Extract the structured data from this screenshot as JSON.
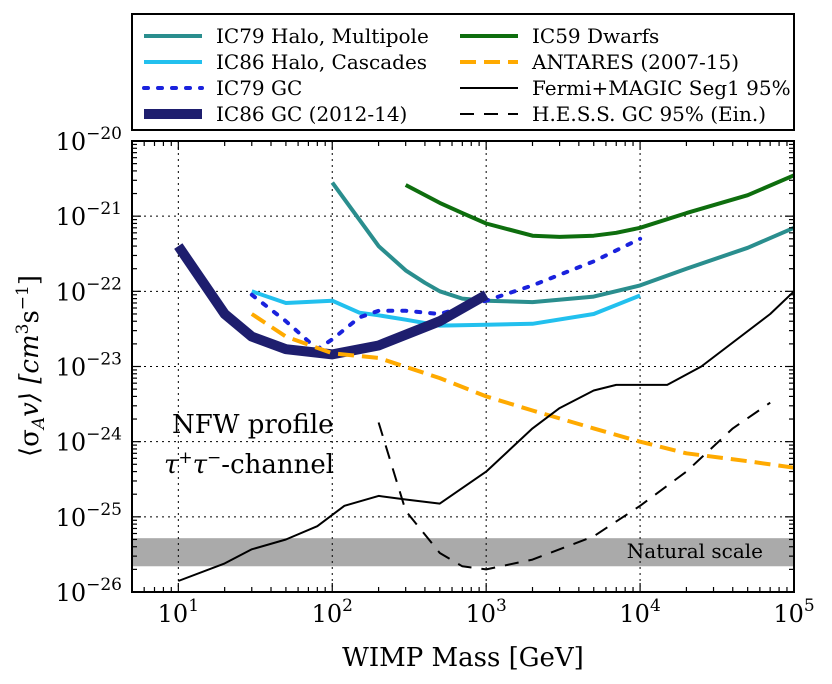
{
  "chart_data": {
    "type": "line",
    "title": "",
    "xlabel": "WIMP Mass [GeV]",
    "ylabel": "⟨σ_A v⟩ [cm³s⁻¹]",
    "xscale": "log",
    "yscale": "log",
    "xlim": [
      5,
      100000
    ],
    "ylim": [
      1e-26,
      1e-20
    ],
    "grid": true,
    "legend_position": "top",
    "x_tick_labels": [
      {
        "value": 10,
        "base": "10",
        "exp": "1"
      },
      {
        "value": 100,
        "base": "10",
        "exp": "2"
      },
      {
        "value": 1000,
        "base": "10",
        "exp": "3"
      },
      {
        "value": 10000,
        "base": "10",
        "exp": "4"
      },
      {
        "value": 100000,
        "base": "10",
        "exp": "5"
      }
    ],
    "y_tick_labels": [
      {
        "value": 1e-26,
        "base": "10",
        "exp": "−26"
      },
      {
        "value": 1e-25,
        "base": "10",
        "exp": "−25"
      },
      {
        "value": 1e-24,
        "base": "10",
        "exp": "−24"
      },
      {
        "value": 1e-23,
        "base": "10",
        "exp": "−23"
      },
      {
        "value": 1e-22,
        "base": "10",
        "exp": "−22"
      },
      {
        "value": 1e-21,
        "base": "10",
        "exp": "−21"
      },
      {
        "value": 1e-20,
        "base": "10",
        "exp": "−20"
      }
    ],
    "series": [
      {
        "name": "IC79 Halo, Multipole",
        "color": "#2a8e8e",
        "style": "solid",
        "weight": "medium",
        "x": [
          100,
          200,
          300,
          400,
          500,
          700,
          1000,
          2000,
          5000,
          10000,
          20000,
          50000,
          100000
        ],
        "y": [
          2.8e-21,
          4e-22,
          1.9e-22,
          1.3e-22,
          1e-22,
          8e-23,
          7.5e-23,
          7.2e-23,
          8.5e-23,
          1.2e-22,
          2e-22,
          3.8e-22,
          7e-22
        ]
      },
      {
        "name": "IC86 Halo, Cascades",
        "color": "#22c0ee",
        "style": "solid",
        "weight": "medium",
        "x": [
          30,
          50,
          100,
          150,
          200,
          300,
          500,
          1000,
          2000,
          5000,
          10000
        ],
        "y": [
          1e-22,
          7e-23,
          7.5e-23,
          5.2e-23,
          4.8e-23,
          4.2e-23,
          3.5e-23,
          3.6e-23,
          3.7e-23,
          5e-23,
          8.8e-23
        ]
      },
      {
        "name": "IC79 GC",
        "color": "#1a22dd",
        "style": "dotted",
        "weight": "medium",
        "x": [
          30,
          50,
          80,
          100,
          150,
          200,
          300,
          500,
          1000,
          2000,
          5000,
          10000
        ],
        "y": [
          9e-23,
          4e-23,
          1.7e-23,
          2.3e-23,
          4.5e-23,
          5.5e-23,
          5.5e-23,
          5e-23,
          7.5e-23,
          1.2e-22,
          2.5e-22,
          5e-22
        ]
      },
      {
        "name": "IC86 GC (2012-14)",
        "color": "#1e1e6e",
        "style": "solid",
        "weight": "heavy",
        "x": [
          10,
          20,
          30,
          50,
          100,
          200,
          500,
          1000
        ],
        "y": [
          4e-22,
          5e-23,
          2.5e-23,
          1.7e-23,
          1.45e-23,
          1.9e-23,
          4e-23,
          9e-23
        ]
      },
      {
        "name": "IC59 Dwarfs",
        "color": "#0e6e0e",
        "style": "solid",
        "weight": "medium",
        "x": [
          300,
          500,
          700,
          1000,
          2000,
          3000,
          5000,
          7000,
          10000,
          20000,
          50000,
          100000
        ],
        "y": [
          2.6e-21,
          1.5e-21,
          1.1e-21,
          8e-22,
          5.5e-22,
          5.3e-22,
          5.5e-22,
          6e-22,
          7e-22,
          1.1e-21,
          1.9e-21,
          3.5e-21
        ]
      },
      {
        "name": "ANTARES (2007-15)",
        "color": "#ffaa00",
        "style": "dashed",
        "weight": "medium",
        "x": [
          30,
          50,
          100,
          200,
          500,
          1000,
          2000,
          5000,
          10000,
          20000,
          50000,
          100000
        ],
        "y": [
          5e-23,
          2.5e-23,
          1.5e-23,
          1.3e-23,
          7e-24,
          4e-24,
          2.6e-24,
          1.5e-24,
          1e-24,
          7e-25,
          5.5e-25,
          4.5e-25
        ]
      },
      {
        "name": "Fermi+MAGIC Seg1 95%",
        "color": "#000000",
        "style": "solid",
        "weight": "thin",
        "x": [
          10,
          20,
          30,
          50,
          80,
          120,
          200,
          300,
          500,
          1000,
          2000,
          3000,
          5000,
          7000,
          15000,
          25000,
          70000,
          100000
        ],
        "y": [
          1.4e-26,
          2.4e-26,
          3.7e-26,
          5e-26,
          7.5e-26,
          1.4e-25,
          1.9e-25,
          1.7e-25,
          1.5e-25,
          4e-25,
          1.5e-24,
          2.8e-24,
          4.8e-24,
          5.7e-24,
          5.7e-24,
          1e-23,
          5e-23,
          1e-22
        ]
      },
      {
        "name": "H.E.S.S. GC 95% (Ein.)",
        "color": "#000000",
        "style": "dashed",
        "weight": "thin",
        "x": [
          200,
          300,
          500,
          700,
          1000,
          2000,
          5000,
          10000,
          20000,
          40000,
          70000
        ],
        "y": [
          1.8e-24,
          1.2e-25,
          3.3e-26,
          2.2e-26,
          2e-26,
          2.7e-26,
          5.5e-26,
          1.4e-25,
          4e-25,
          1.5e-24,
          3.3e-24
        ]
      }
    ],
    "band": {
      "label": "Natural scale",
      "y_low": 2.2e-26,
      "y_high": 5.2e-26,
      "color": "#aaaaaa"
    },
    "annotations": {
      "line1": "NFW profile",
      "line2_greek": "τ",
      "line2_sup_a": "+",
      "line2_greek_b": "τ",
      "line2_sup_b": "−",
      "line2_suffix": "-channel"
    },
    "y_axis_text": {
      "open": "⟨σ",
      "sub": "A",
      "v": "v⟩ [cm",
      "sup1": "3",
      "s": "s",
      "sup2": "−1",
      "close": "]"
    }
  }
}
